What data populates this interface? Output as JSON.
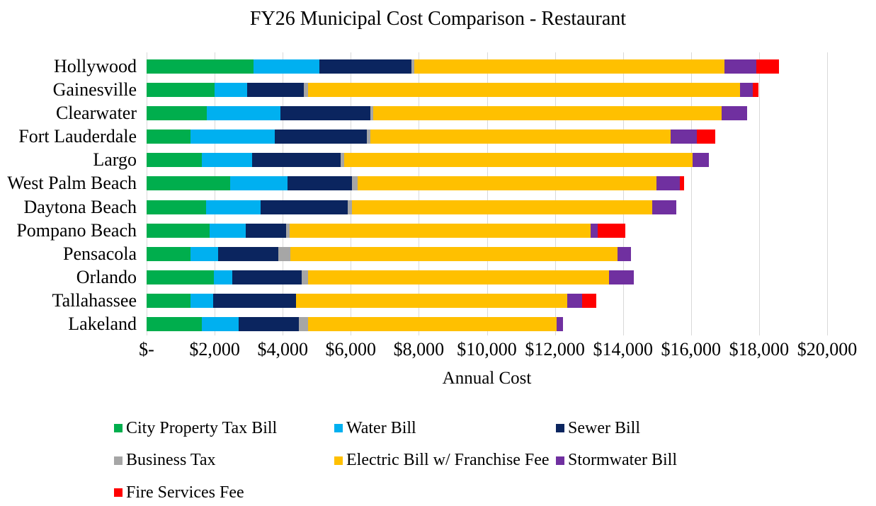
{
  "chart_data": {
    "type": "bar",
    "orientation": "horizontal-stacked",
    "title": "FY26 Municipal Cost Comparison - Restaurant",
    "xlabel": "Annual Cost",
    "x_min": 0,
    "x_max": 20000,
    "x_step": 2000,
    "x_tick_labels": [
      "$-",
      "$2,000",
      "$4,000",
      "$6,000",
      "$8,000",
      "$10,000",
      "$12,000",
      "$14,000",
      "$16,000",
      "$18,000",
      "$20,000"
    ],
    "grid": true,
    "legend_position": "bottom",
    "categories": [
      "Hollywood",
      "Gainesville",
      "Clearwater",
      "Fort Lauderdale",
      "Largo",
      "West Palm Beach",
      "Daytona Beach",
      "Pompano Beach",
      "Pensacola",
      "Orlando",
      "Tallahassee",
      "Lakeland"
    ],
    "series": [
      {
        "name": "City Property Tax Bill",
        "color": "#00AE4D",
        "values": [
          3150,
          2000,
          1775,
          1300,
          1625,
          2450,
          1750,
          1860,
          1290,
          1985,
          1300,
          1620
        ]
      },
      {
        "name": "Water Bill",
        "color": "#00B0F0",
        "values": [
          1925,
          950,
          2150,
          2475,
          1475,
          1700,
          1610,
          1050,
          815,
          525,
          650,
          1085
        ]
      },
      {
        "name": "Sewer Bill",
        "color": "#0B255F",
        "values": [
          2700,
          1675,
          2650,
          2700,
          2600,
          1875,
          2545,
          1185,
          1765,
          2040,
          2440,
          1770
        ]
      },
      {
        "name": "Business Tax",
        "color": "#A6A6A6",
        "values": [
          85,
          110,
          80,
          105,
          105,
          175,
          120,
          100,
          360,
          200,
          0,
          265
        ]
      },
      {
        "name": "Electric Bill w/ Franchise Fee",
        "color": "#FFC000",
        "values": [
          9125,
          12700,
          10250,
          8825,
          10250,
          8790,
          8825,
          8850,
          9610,
          8850,
          7975,
          7320
        ]
      },
      {
        "name": "Stormwater Bill",
        "color": "#7030A0",
        "values": [
          925,
          380,
          750,
          775,
          460,
          675,
          710,
          210,
          405,
          710,
          430,
          175
        ]
      },
      {
        "name": "Fire Services Fee",
        "color": "#FF0000",
        "values": [
          670,
          160,
          0,
          540,
          0,
          140,
          0,
          815,
          0,
          0,
          425,
          0
        ]
      }
    ],
    "gridline_color": "#D9D9D9"
  }
}
